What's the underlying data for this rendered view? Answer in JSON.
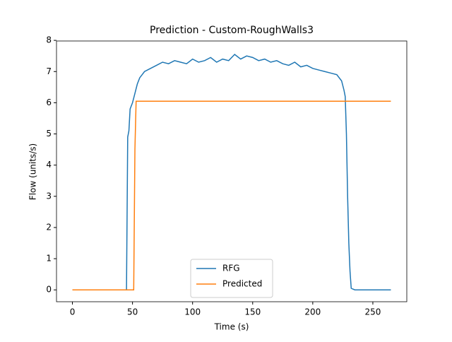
{
  "chart_data": {
    "type": "line",
    "title": "Prediction - Custom-RoughWalls3",
    "x_label": "Time (s)",
    "y_label": "Flow (units/s)",
    "xlim": [
      -13.25,
      278.25
    ],
    "ylim": [
      -0.38,
      7.98
    ],
    "xticks": [
      0,
      50,
      100,
      150,
      200,
      250
    ],
    "yticks": [
      0,
      1,
      2,
      3,
      4,
      5,
      6,
      7,
      8
    ],
    "legend": "lower center",
    "series": [
      {
        "name": "RFG",
        "color": "#1f77b4",
        "x": [
          0,
          45,
          46,
          47,
          48,
          50,
          52,
          54,
          56,
          58,
          60,
          65,
          70,
          75,
          80,
          85,
          90,
          95,
          100,
          105,
          110,
          115,
          120,
          125,
          130,
          135,
          140,
          145,
          150,
          155,
          160,
          165,
          170,
          175,
          180,
          185,
          190,
          195,
          200,
          205,
          210,
          215,
          220,
          224,
          226,
          227,
          228,
          229,
          230,
          231,
          232,
          235,
          265
        ],
        "values": [
          0,
          0,
          4.9,
          5.1,
          5.8,
          6.0,
          6.3,
          6.6,
          6.8,
          6.9,
          7.0,
          7.1,
          7.2,
          7.3,
          7.25,
          7.35,
          7.3,
          7.25,
          7.4,
          7.3,
          7.35,
          7.45,
          7.3,
          7.4,
          7.35,
          7.55,
          7.4,
          7.5,
          7.45,
          7.35,
          7.4,
          7.3,
          7.35,
          7.25,
          7.2,
          7.3,
          7.15,
          7.2,
          7.1,
          7.05,
          7.0,
          6.95,
          6.9,
          6.7,
          6.4,
          6.2,
          5.0,
          3.0,
          1.5,
          0.6,
          0.05,
          0,
          0
        ]
      },
      {
        "name": "Predicted",
        "color": "#ff7f0e",
        "x": [
          0,
          51,
          52,
          53,
          265
        ],
        "values": [
          0,
          0,
          4.5,
          6.05,
          6.05
        ]
      }
    ]
  }
}
